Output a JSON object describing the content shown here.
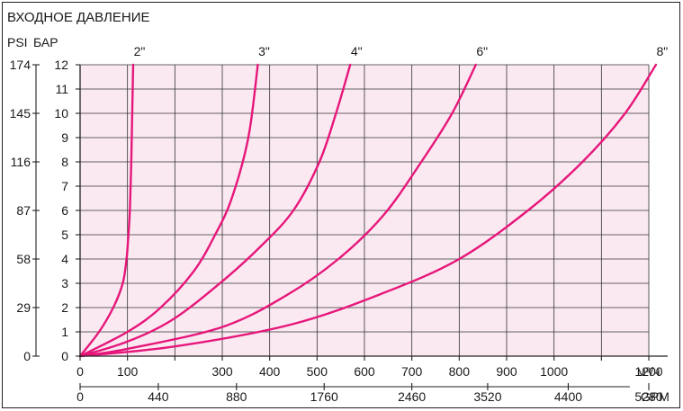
{
  "chart_data": {
    "type": "line",
    "title": "ВХОДНОЕ ДАВЛЕНИЕ",
    "y_labels": {
      "psi": "PSI",
      "bar": "БАР"
    },
    "x_primary_unit": "м³/ч",
    "x_secondary_unit": "GPM",
    "bar_ticks": [
      "0",
      "1",
      "2",
      "3",
      "4",
      "5",
      "6",
      "7",
      "8",
      "9",
      "10",
      "11",
      "12"
    ],
    "psi_ticks": [
      {
        "bar": 0,
        "label": "0"
      },
      {
        "bar": 2,
        "label": "29"
      },
      {
        "bar": 4,
        "label": "58"
      },
      {
        "bar": 6,
        "label": "87"
      },
      {
        "bar": 8,
        "label": "116"
      },
      {
        "bar": 10,
        "label": "145"
      },
      {
        "bar": 12,
        "label": "174"
      }
    ],
    "x_ticks": [
      {
        "value": 0,
        "label": "0"
      },
      {
        "value": 100,
        "label": "100"
      },
      {
        "value": 200,
        "label": ""
      },
      {
        "value": 300,
        "label": "300"
      },
      {
        "value": 400,
        "label": "400"
      },
      {
        "value": 500,
        "label": "500"
      },
      {
        "value": 600,
        "label": "600"
      },
      {
        "value": 700,
        "label": "700"
      },
      {
        "value": 800,
        "label": "800"
      },
      {
        "value": 900,
        "label": "900"
      },
      {
        "value": 1000,
        "label": "1000"
      },
      {
        "value": 1100,
        "label": ""
      },
      {
        "value": 1200,
        "label": "1200"
      }
    ],
    "gpm_ticks": [
      {
        "value": 0,
        "label": "0"
      },
      {
        "value": 165,
        "label": "440"
      },
      {
        "value": 330,
        "label": "880"
      },
      {
        "value": 515,
        "label": "1760"
      },
      {
        "value": 700,
        "label": "2460"
      },
      {
        "value": 860,
        "label": "3520"
      },
      {
        "value": 1030,
        "label": "4400"
      },
      {
        "value": 1200,
        "label": "5280"
      }
    ],
    "xlim": [
      0,
      1200
    ],
    "ylim": [
      0,
      12
    ],
    "grid": true,
    "series": [
      {
        "name": "2\"",
        "x": [
          0,
          40,
          70,
          90,
          98,
          102,
          105,
          108,
          110,
          112
        ],
        "y": [
          0,
          1,
          2,
          3,
          4,
          5,
          6,
          8,
          10,
          12
        ]
      },
      {
        "name": "3\"",
        "x": [
          0,
          100,
          170,
          240,
          285,
          320,
          355,
          375
        ],
        "y": [
          0,
          1,
          2,
          3.5,
          5,
          6.5,
          9,
          12
        ]
      },
      {
        "name": "4\"",
        "x": [
          0,
          100,
          195,
          295,
          380,
          450,
          505,
          540,
          570
        ],
        "y": [
          0,
          0.6,
          1.5,
          3,
          4.5,
          6,
          8,
          10,
          12
        ]
      },
      {
        "name": "6\"",
        "x": [
          0,
          100,
          300,
          435,
          545,
          640,
          720,
          785,
          835
        ],
        "y": [
          0,
          0.3,
          1.2,
          2.5,
          4,
          5.8,
          8,
          10,
          12
        ]
      },
      {
        "name": "8\"",
        "x": [
          0,
          200,
          445,
          640,
          800,
          945,
          1060,
          1150,
          1215
        ],
        "y": [
          0,
          0.4,
          1.3,
          2.6,
          4,
          6,
          8,
          10,
          12
        ]
      }
    ],
    "colors": {
      "curve": "#e6177a",
      "plot_bg": "#fbe9f2",
      "grid": "#333333",
      "axis": "#222222"
    }
  }
}
